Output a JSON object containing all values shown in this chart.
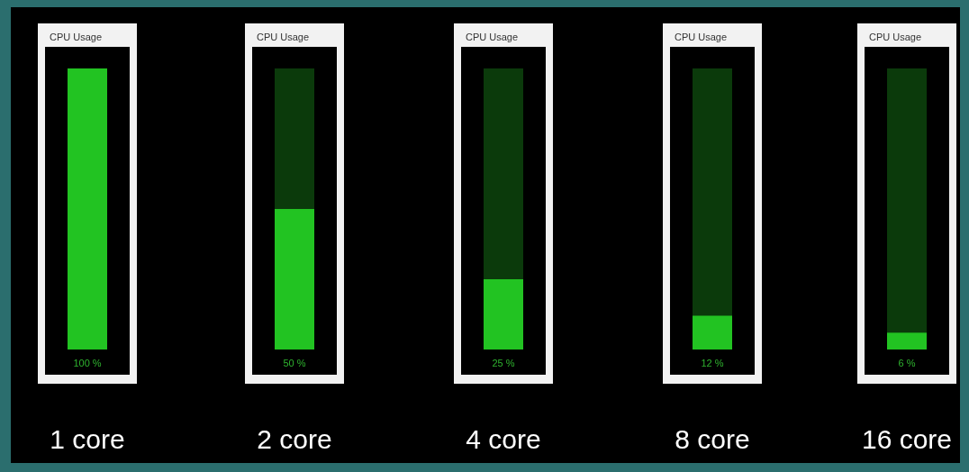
{
  "chart_data": [
    {
      "type": "bar",
      "title": "CPU Usage",
      "categories": [
        "1 core"
      ],
      "values": [
        100
      ],
      "value_labels": [
        "100 %"
      ],
      "ylim": [
        0,
        100
      ],
      "tick_labels": "x",
      "color": "#22c322"
    },
    {
      "type": "bar",
      "title": "CPU Usage",
      "categories": [
        "2 core"
      ],
      "values": [
        50
      ],
      "value_labels": [
        "50 %"
      ],
      "ylim": [
        0,
        100
      ],
      "tick_labels": "x",
      "color": "#22c322"
    },
    {
      "type": "bar",
      "title": "CPU Usage",
      "categories": [
        "4 core"
      ],
      "values": [
        25
      ],
      "value_labels": [
        "25 %"
      ],
      "ylim": [
        0,
        100
      ],
      "tick_labels": "x",
      "color": "#22c322"
    },
    {
      "type": "bar",
      "title": "CPU Usage",
      "categories": [
        "8 core"
      ],
      "values": [
        12
      ],
      "value_labels": [
        "12 %"
      ],
      "ylim": [
        0,
        100
      ],
      "tick_labels": "x",
      "color": "#22c322"
    },
    {
      "type": "bar",
      "title": "CPU Usage",
      "categories": [
        "16 core"
      ],
      "values": [
        6
      ],
      "value_labels": [
        "6 %"
      ],
      "ylim": [
        0,
        100
      ],
      "tick_labels": "x",
      "color": "#22c322"
    }
  ]
}
